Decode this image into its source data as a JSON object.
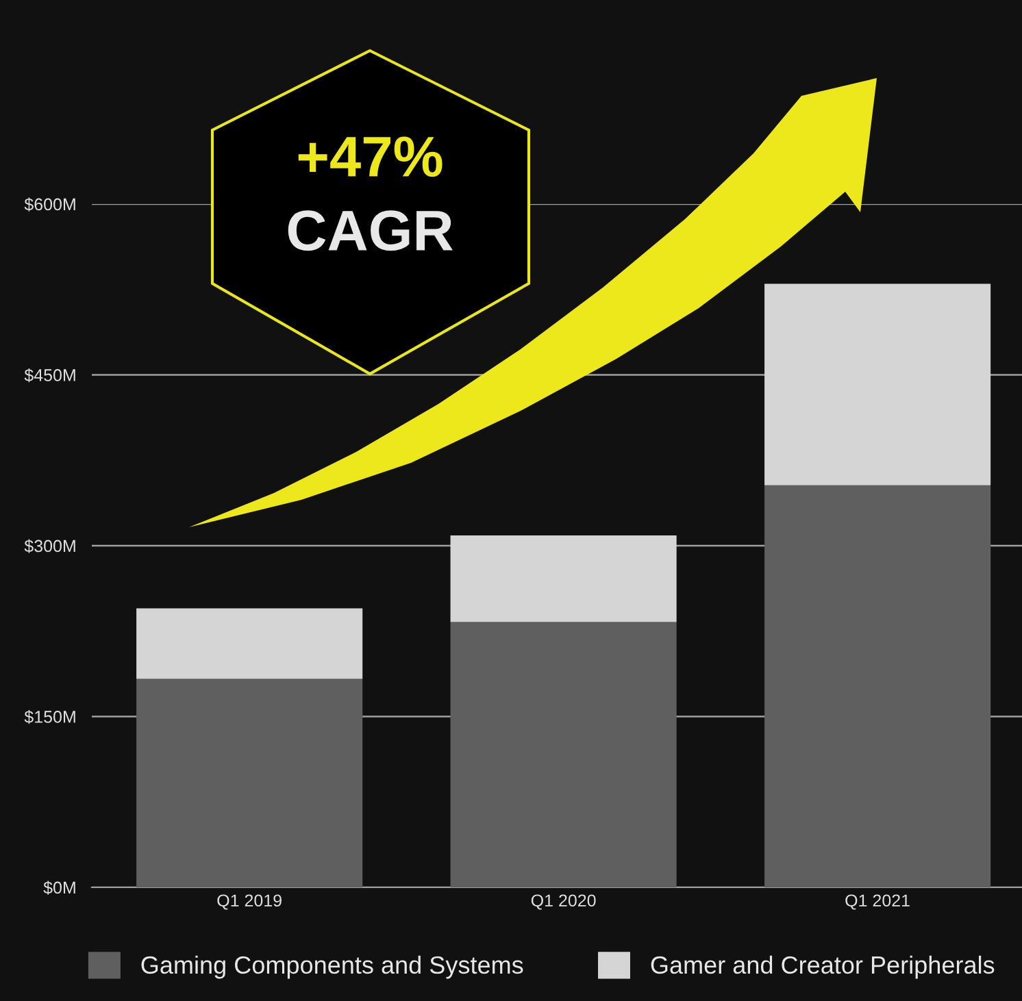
{
  "chart_data": {
    "type": "bar",
    "stacked": true,
    "categories": [
      "Q1 2019",
      "Q1 2020",
      "Q1 2021"
    ],
    "series": [
      {
        "name": "Gaming Components and Systems",
        "color": "#5f5f5f",
        "values": [
          183,
          233,
          353
        ]
      },
      {
        "name": "Gamer and Creator Peripherals",
        "color": "#d6d5d6",
        "values": [
          62,
          76,
          177
        ]
      }
    ],
    "ylim": [
      0,
      600
    ],
    "yticks": [
      {
        "value": 0,
        "label": "$0M"
      },
      {
        "value": 150,
        "label": "$150M"
      },
      {
        "value": 300,
        "label": "$300M"
      },
      {
        "value": 450,
        "label": "$450M"
      },
      {
        "value": 600,
        "label": "$600M"
      }
    ],
    "grid": "y",
    "legend": "bottom",
    "annotations": [
      "+47%",
      "CAGR"
    ]
  }
}
